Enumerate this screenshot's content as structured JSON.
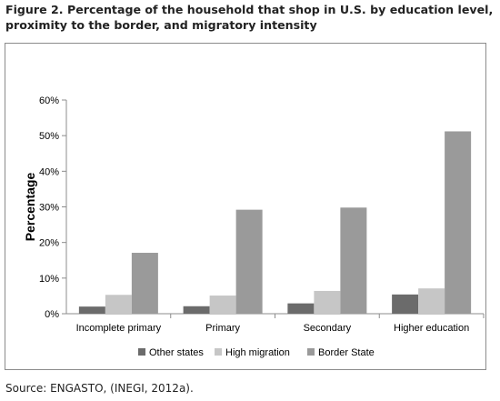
{
  "figure": {
    "title_line1": "Figure 2. Percentage of the household that shop in U.S. by education level,",
    "title_line2": "proximity to the border, and migratory intensity"
  },
  "source": "Source: ENGASTO, (INEGI, 2012a).",
  "chart_data": {
    "type": "bar",
    "ylabel": "Percentage",
    "xlabel": "",
    "ylim": [
      0,
      60
    ],
    "yticks": [
      "0%",
      "10%",
      "20%",
      "30%",
      "40%",
      "50%",
      "60%"
    ],
    "grid": false,
    "legend_position": "bottom",
    "categories": [
      "Incomplete primary",
      "Primary",
      "Secondary",
      "Higher education"
    ],
    "series": [
      {
        "name": "Other states",
        "color": "#6b6b6b",
        "values": [
          2.0,
          2.1,
          2.9,
          5.4
        ]
      },
      {
        "name": "High migration",
        "color": "#c6c6c6",
        "values": [
          5.3,
          5.1,
          6.4,
          7.1
        ]
      },
      {
        "name": "Border State",
        "color": "#9a9a9a",
        "values": [
          17.1,
          29.2,
          29.8,
          51.2
        ]
      }
    ]
  }
}
